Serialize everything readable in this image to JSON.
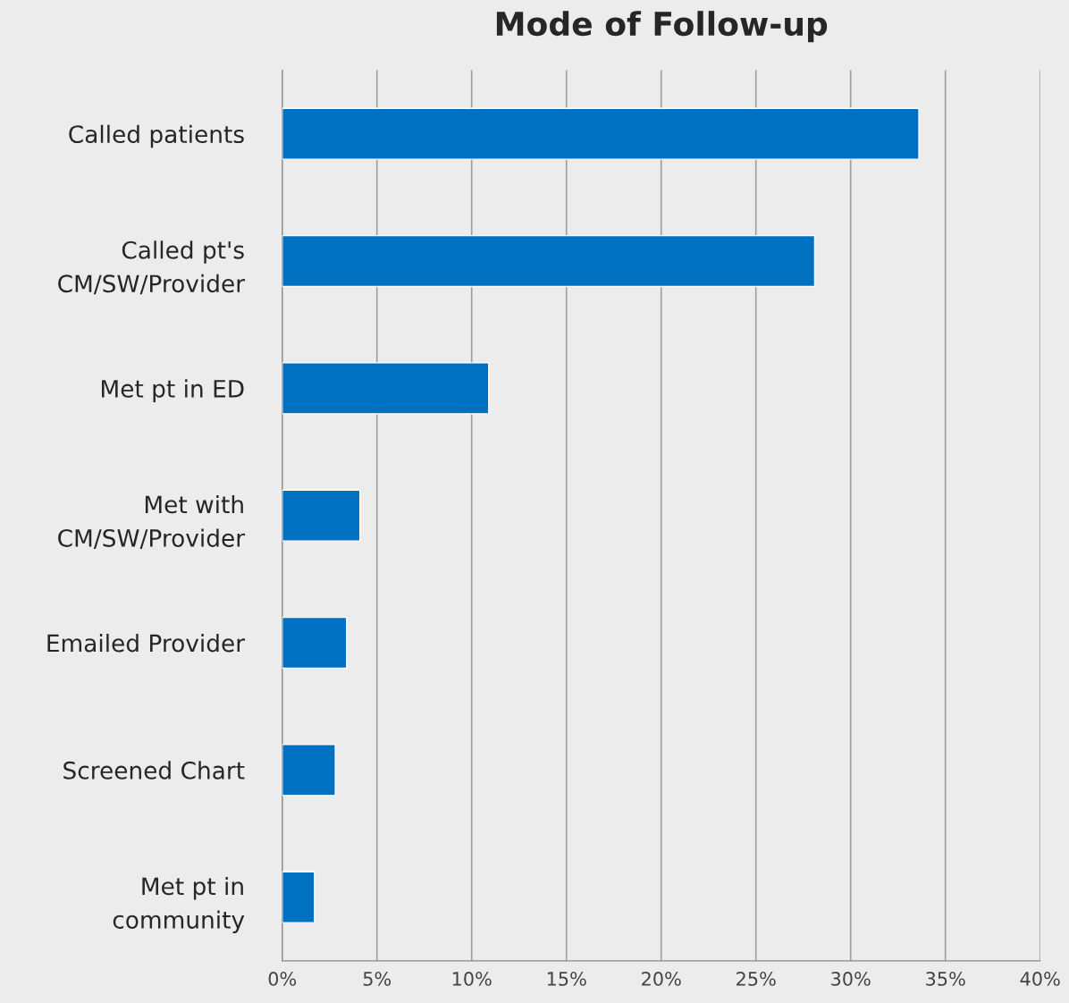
{
  "chart_data": {
    "type": "bar",
    "orientation": "horizontal",
    "title": "Mode of Follow-up",
    "categories": [
      "Called patients",
      "Called pt's\nCM/SW/Provider",
      "Met pt in ED",
      "Met with\nCM/SW/Provider",
      "Emailed Provider",
      "Screened Chart",
      "Met pt in\ncommunity"
    ],
    "values": [
      33.6,
      28.1,
      10.9,
      4.1,
      3.4,
      2.8,
      1.7
    ],
    "color": "#0070c0",
    "xlim": [
      0,
      40
    ],
    "xticks": [
      {
        "value": 0,
        "label": "0%"
      },
      {
        "value": 5,
        "label": "5%"
      },
      {
        "value": 10,
        "label": "10%"
      },
      {
        "value": 15,
        "label": "15%"
      },
      {
        "value": 20,
        "label": "20%"
      },
      {
        "value": 25,
        "label": "25%"
      },
      {
        "value": 30,
        "label": "30%"
      },
      {
        "value": 35,
        "label": "35%"
      },
      {
        "value": 40,
        "label": "40%"
      }
    ],
    "grid": "x",
    "legend": false
  }
}
